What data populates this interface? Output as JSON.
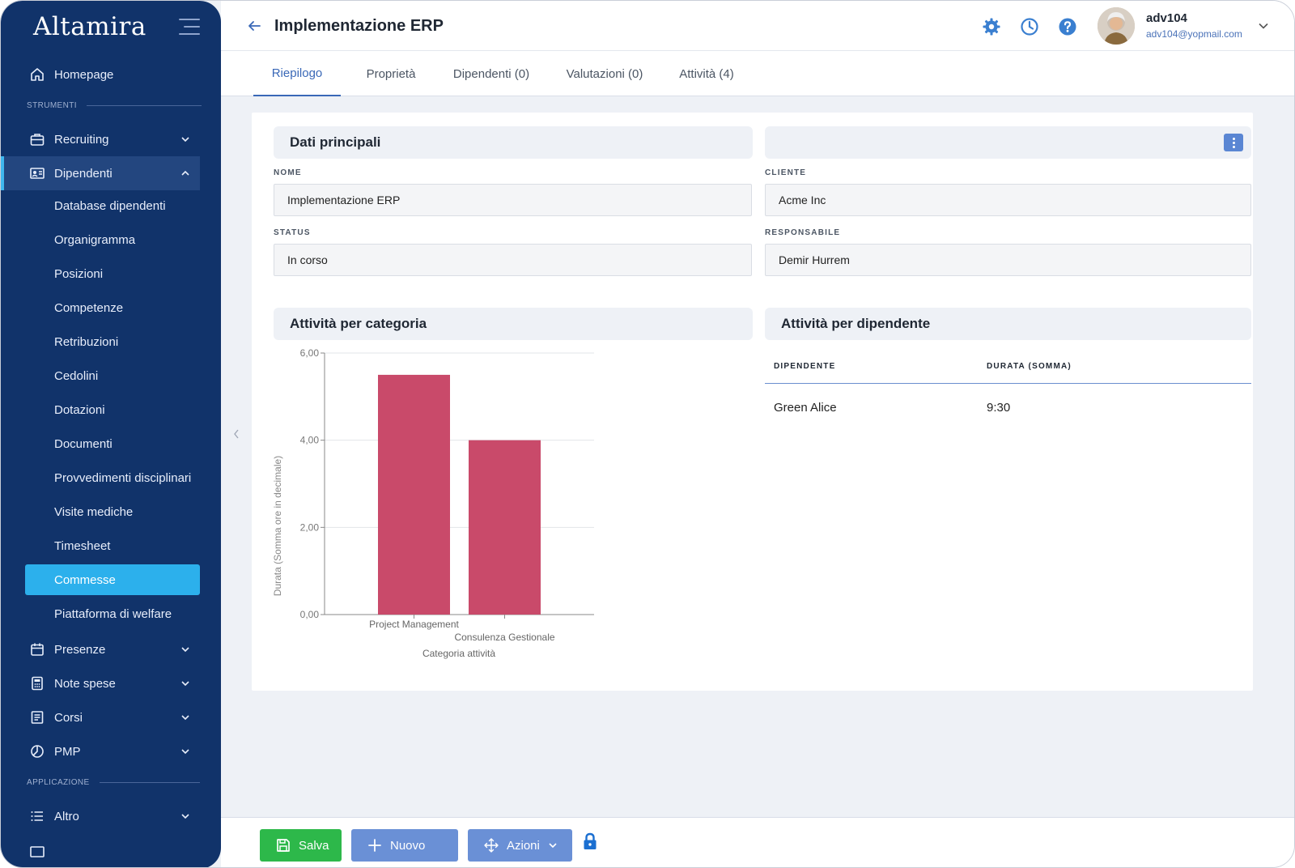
{
  "app": {
    "logo": "Altamira"
  },
  "sidebar": {
    "homepage": "Homepage",
    "section_tools": "STRUMENTI",
    "recruiting": "Recruiting",
    "dipendenti": "Dipendenti",
    "sub_items": [
      "Database dipendenti",
      "Organigramma",
      "Posizioni",
      "Competenze",
      "Retribuzioni",
      "Cedolini",
      "Dotazioni",
      "Documenti",
      "Provvedimenti disciplinari",
      "Visite mediche",
      "Timesheet",
      "Commesse",
      "Piattaforma di welfare"
    ],
    "presenze": "Presenze",
    "note_spese": "Note spese",
    "corsi": "Corsi",
    "pmp": "PMP",
    "section_app": "APPLICAZIONE",
    "altro": "Altro"
  },
  "header": {
    "title": "Implementazione ERP",
    "user_name": "adv104",
    "user_email": "adv104@yopmail.com"
  },
  "tabs": [
    "Riepilogo",
    "Proprietà",
    "Dipendenti (0)",
    "Valutazioni (0)",
    "Attività (4)"
  ],
  "main": {
    "panel_main_title": "Dati principali",
    "fields": {
      "nome_label": "NOME",
      "nome_value": "Implementazione ERP",
      "cliente_label": "CLIENTE",
      "cliente_value": "Acme Inc",
      "status_label": "STATUS",
      "status_value": "In corso",
      "responsabile_label": "RESPONSABILE",
      "responsabile_value": "Demir Hurrem"
    },
    "panel_chart_title": "Attività per categoria",
    "panel_table_title": "Attività per dipendente",
    "table": {
      "headers": [
        "DIPENDENTE",
        "DURATA (SOMMA)"
      ],
      "rows": [
        [
          "Green Alice",
          "9:30"
        ]
      ]
    }
  },
  "chart_data": {
    "type": "bar",
    "categories": [
      "Project Management",
      "Consulenza Gestionale"
    ],
    "values": [
      5.5,
      4.0
    ],
    "xlabel": "Categoria attività",
    "ylabel": "Durata (Somma ore in decimale)",
    "ylim": [
      0,
      6
    ],
    "yticks": [
      "0,00",
      "2,00",
      "4,00",
      "6,00"
    ],
    "grid": true,
    "bar_color": "#c94a6a"
  },
  "footer": {
    "save": "Salva",
    "new": "Nuovo",
    "actions": "Azioni"
  },
  "colors": {
    "sidebar_bg": "#11336a",
    "accent": "#2cb0ec",
    "primary_blue": "#3a68b7",
    "save_green": "#2db84a"
  }
}
